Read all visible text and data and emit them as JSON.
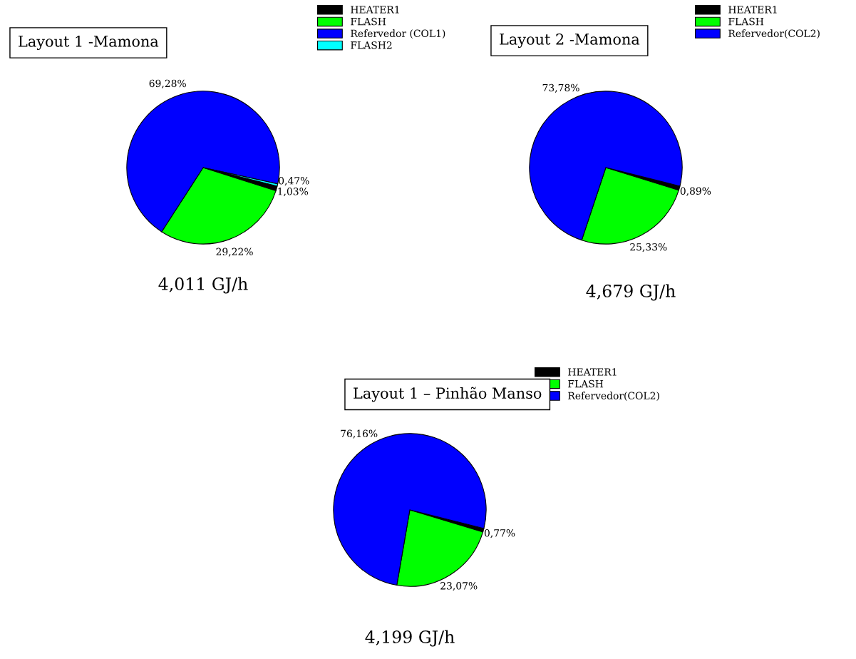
{
  "chart_data": [
    {
      "type": "pie",
      "title": "Layout 1 -Mamona",
      "categories": [
        "HEATER1",
        "FLASH",
        "Refervedor (COL1)",
        "FLASH2"
      ],
      "values": [
        1.03,
        29.22,
        69.28,
        0.47
      ],
      "colors": [
        "#000000",
        "#00ff00",
        "#0000ff",
        "#00ffff"
      ],
      "value_labels": [
        "1,03%",
        "29,22%",
        "69,28%",
        "0,47%"
      ],
      "legend": "top right",
      "annotations": [
        "4,011 GJ/h"
      ]
    },
    {
      "type": "pie",
      "title": "Layout 2 -Mamona",
      "categories": [
        "HEATER1",
        "FLASH",
        "Refervedor(COL2)"
      ],
      "values": [
        0.89,
        25.33,
        73.78
      ],
      "colors": [
        "#000000",
        "#00ff00",
        "#0000ff"
      ],
      "value_labels": [
        "0,89%",
        "25,33%",
        "73,78%"
      ],
      "legend": "top right",
      "annotations": [
        "4,679 GJ/h"
      ]
    },
    {
      "type": "pie",
      "title": "Layout 1 – Pinhão Manso",
      "categories": [
        "HEATER1",
        "FLASH",
        "Refervedor(COL2)"
      ],
      "values": [
        0.77,
        23.07,
        76.16
      ],
      "colors": [
        "#000000",
        "#00ff00",
        "#0000ff"
      ],
      "value_labels": [
        "0,77%",
        "23,07%",
        "76,16%"
      ],
      "legend": "top right",
      "annotations": [
        "4,199 GJ/h"
      ]
    }
  ]
}
